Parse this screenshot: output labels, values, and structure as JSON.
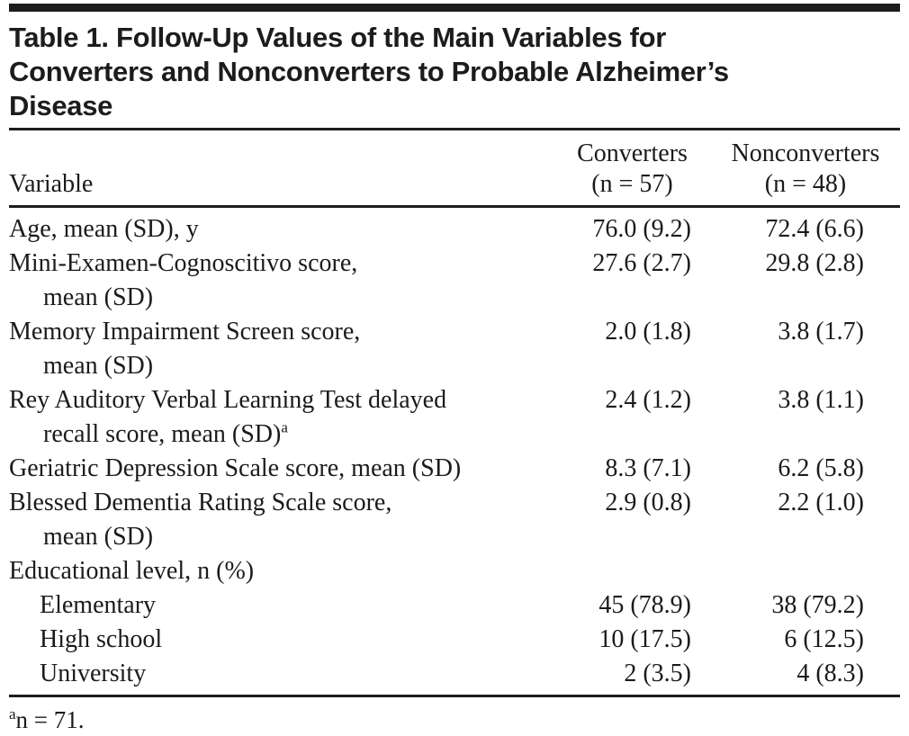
{
  "colors": {
    "ink": "#1d1d1d",
    "background": "#ffffff"
  },
  "table": {
    "title_lines": [
      "Table 1. Follow-Up Values of the Main Variables for",
      "Converters and Nonconverters to Probable Alzheimer’s",
      "Disease"
    ],
    "columns": {
      "variable_label": "Variable",
      "groups": [
        {
          "name": "Converters",
          "n": "(n = 57)"
        },
        {
          "name": "Nonconverters",
          "n": "(n = 48)"
        }
      ]
    },
    "rows": [
      {
        "lines": [
          "Age, mean (SD), y"
        ],
        "indent": 0,
        "converters": "76.0 (9.2)",
        "nonconverters": "72.4 (6.6)"
      },
      {
        "lines": [
          "Mini-Examen-Cognoscitivo score,",
          "mean (SD)"
        ],
        "indent": 0,
        "converters": "27.6 (2.7)",
        "nonconverters": "29.8 (2.8)"
      },
      {
        "lines": [
          "Memory Impairment Screen score,",
          "mean (SD)"
        ],
        "indent": 0,
        "converters": "2.0 (1.8)",
        "nonconverters": "3.8 (1.7)"
      },
      {
        "lines": [
          "Rey Auditory Verbal Learning Test delayed",
          "recall score, mean (SD)"
        ],
        "sup": "a",
        "indent": 0,
        "converters": "2.4 (1.2)",
        "nonconverters": "3.8 (1.1)"
      },
      {
        "lines": [
          "Geriatric Depression Scale score, mean (SD)"
        ],
        "indent": 0,
        "converters": "8.3 (7.1)",
        "nonconverters": "6.2 (5.8)"
      },
      {
        "lines": [
          "Blessed Dementia Rating Scale score,",
          "mean (SD)"
        ],
        "indent": 0,
        "converters": "2.9 (0.8)",
        "nonconverters": "2.2 (1.0)"
      },
      {
        "lines": [
          "Educational level, n (%)"
        ],
        "indent": 0,
        "converters": "",
        "nonconverters": ""
      },
      {
        "lines": [
          "Elementary"
        ],
        "indent": 1,
        "converters": "45 (78.9)",
        "nonconverters": "38 (79.2)"
      },
      {
        "lines": [
          "High school"
        ],
        "indent": 1,
        "converters": "10 (17.5)",
        "nonconverters": "6 (12.5)"
      },
      {
        "lines": [
          "University"
        ],
        "indent": 1,
        "converters": "2 (3.5)",
        "nonconverters": "4 (8.3)"
      }
    ],
    "footnote": {
      "marker": "a",
      "text": "n = 71."
    }
  }
}
